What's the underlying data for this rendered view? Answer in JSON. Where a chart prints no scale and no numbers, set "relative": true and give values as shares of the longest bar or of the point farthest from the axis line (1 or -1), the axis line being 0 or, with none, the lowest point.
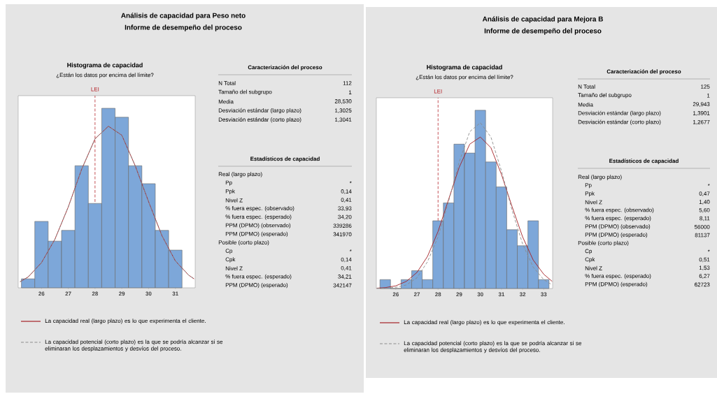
{
  "chart_data": [
    {
      "type": "other",
      "title": "Análisis de capacidad para Peso neto",
      "subtitle": "Informe de desempeño del proceso"
    },
    {
      "type": "histogram",
      "title": "Histograma de capacidad",
      "subtitle": "¿Están los datos por encima del límite?",
      "relative": true,
      "bins": [
        25.25,
        25.75,
        26.25,
        26.75,
        27.25,
        27.75,
        28.25,
        28.75,
        29.25,
        29.75,
        30.25,
        30.75,
        31.25
      ],
      "values": [
        0.05,
        0.37,
        0.26,
        0.32,
        0.68,
        0.47,
        1,
        0.95,
        0.68,
        0.58,
        0.32,
        0.21
      ],
      "color": "#7da7d9",
      "xlim": [
        25.13,
        31.74
      ],
      "xticks": [
        26,
        27,
        28,
        29,
        30,
        31
      ],
      "tick_labels": "x",
      "legend": "bottom",
      "ref_lines": [
        {
          "axis": "x",
          "value": 28,
          "label": "LEI",
          "color": "#b5252b",
          "line_style": "dashed"
        }
      ],
      "series": [
        {
          "type": "line",
          "name": "La capacidad real (largo plazo) es lo que experimenta el cliente.",
          "color": "#a31f24",
          "line_style": "solid",
          "x": [
            25.2,
            25.5,
            26,
            26.5,
            27,
            27.5,
            28,
            28.5,
            29,
            29.5,
            30,
            30.5,
            31,
            31.5,
            31.7
          ],
          "values": [
            0.034,
            0.06,
            0.14,
            0.27,
            0.45,
            0.66,
            0.83,
            0.9,
            0.85,
            0.68,
            0.48,
            0.29,
            0.15,
            0.07,
            0.05
          ]
        },
        {
          "type": "line",
          "name": "La capacidad potencial (corto plazo) es la que se podría alcanzar si se eliminaran los desplazamientos y desvíos del proceso.",
          "color": "#8c8c8c",
          "line_style": "dashed",
          "x": [
            25.2,
            25.5,
            26,
            26.5,
            27,
            27.5,
            28,
            28.5,
            29,
            29.5,
            30,
            30.5,
            31,
            31.5,
            31.7
          ],
          "values": [
            0.034,
            0.06,
            0.14,
            0.27,
            0.45,
            0.66,
            0.83,
            0.9,
            0.85,
            0.68,
            0.48,
            0.29,
            0.15,
            0.07,
            0.05
          ]
        }
      ]
    },
    {
      "type": "other",
      "title": "Caracterización del proceso",
      "categories": [
        "N Total",
        "Tamaño del subgrupo",
        "Media",
        "Desviación estándar (largo plazo)",
        "Desviación estándar (corto plazo)"
      ],
      "value_labels": [
        "112",
        "1",
        "28,530",
        "1,3025",
        "1,3041"
      ]
    },
    {
      "type": "other",
      "title": "Estadísticos de capacidad",
      "categories": [
        "Real (largo plazo)",
        "Pp",
        "Ppk",
        "Nivel Z",
        "% fuera espec. (observado)",
        "% fuera espec. (esperado)",
        "PPM (DPMO) (observado)",
        "PPM (DPMO) (esperado)",
        "Posible (corto plazo)",
        "Cp",
        "Cpk",
        "Nivel Z",
        "% fuera espec. (esperado)",
        "PPM (DPMO) (esperado)"
      ],
      "value_labels": [
        null,
        "*",
        "0,14",
        "0,41",
        "33,93",
        "34,20",
        "339286",
        "341970",
        null,
        "*",
        "0,14",
        "0,41",
        "34,21",
        "342147"
      ]
    },
    {
      "type": "other",
      "title": "Análisis de capacidad para Mejora B",
      "subtitle": "Informe de desempeño del proceso"
    },
    {
      "type": "histogram",
      "title": "Histograma de capacidad",
      "subtitle": "¿Están los datos por encima del límite?",
      "relative": true,
      "bins": [
        25.25,
        25.75,
        26.25,
        26.75,
        27.25,
        27.75,
        28.25,
        28.75,
        29.25,
        29.75,
        30.25,
        30.75,
        31.25,
        31.75,
        32.25,
        32.75,
        33.25
      ],
      "values": [
        0.05,
        0,
        0.05,
        0.1,
        0.05,
        0.38,
        0.48,
        0.81,
        0.76,
        1,
        0.71,
        0.57,
        0.33,
        0.24,
        0.38,
        0.05
      ],
      "color": "#7da7d9",
      "xlim": [
        25.08,
        33.42
      ],
      "xticks": [
        26,
        27,
        28,
        29,
        30,
        31,
        32,
        33
      ],
      "tick_labels": "x",
      "legend": "bottom",
      "ref_lines": [
        {
          "axis": "x",
          "value": 28,
          "label": "LEI",
          "color": "#b5252b",
          "line_style": "dashed"
        }
      ],
      "series": [
        {
          "type": "line",
          "name": "La capacidad real (largo plazo) es lo que experimenta el cliente.",
          "color": "#a31f24",
          "line_style": "solid",
          "x": [
            25.1,
            25.5,
            26,
            26.5,
            27,
            27.5,
            28,
            28.5,
            29,
            29.5,
            30,
            30.5,
            31,
            31.5,
            32,
            32.5,
            33,
            33.4
          ],
          "values": [
            0.002,
            0.005,
            0.015,
            0.04,
            0.09,
            0.18,
            0.32,
            0.5,
            0.68,
            0.81,
            0.85,
            0.79,
            0.64,
            0.46,
            0.29,
            0.16,
            0.08,
            0.04
          ]
        },
        {
          "type": "line",
          "name": "La capacidad potencial (corto plazo) es la que se podría alcanzar si se eliminaran los desplazamientos y desvíos del proceso.",
          "color": "#8c8c8c",
          "line_style": "dashed",
          "x": [
            25.1,
            25.5,
            26,
            26.5,
            27,
            27.5,
            28,
            28.5,
            29,
            29.5,
            30,
            30.5,
            31,
            31.5,
            32,
            32.5,
            33,
            33.4
          ],
          "values": [
            0.001,
            0.002,
            0.007,
            0.02,
            0.06,
            0.15,
            0.29,
            0.49,
            0.71,
            0.88,
            0.93,
            0.85,
            0.66,
            0.44,
            0.25,
            0.12,
            0.05,
            0.02
          ]
        }
      ]
    },
    {
      "type": "other",
      "title": "Caracterización del proceso",
      "categories": [
        "N Total",
        "Tamaño del subgrupo",
        "Media",
        "Desviación estándar (largo plazo)",
        "Desviación estándar (corto plazo)"
      ],
      "value_labels": [
        "125",
        "1",
        "29,943",
        "1,3901",
        "1,2677"
      ]
    },
    {
      "type": "other",
      "title": "Estadísticos de capacidad",
      "categories": [
        "Real (largo plazo)",
        "Pp",
        "Ppk",
        "Nivel Z",
        "% fuera espec. (observado)",
        "% fuera espec. (esperado)",
        "PPM (DPMO) (observado)",
        "PPM (DPMO) (esperado)",
        "Posible (corto plazo)",
        "Cp",
        "Cpk",
        "Nivel Z",
        "% fuera espec. (esperado)",
        "PPM (DPMO) (esperado)"
      ],
      "value_labels": [
        null,
        "*",
        "0,47",
        "1,40",
        "5,60",
        "8,11",
        "56000",
        "81137",
        null,
        "*",
        "0,51",
        "1,53",
        "6,27",
        "62723"
      ]
    }
  ]
}
